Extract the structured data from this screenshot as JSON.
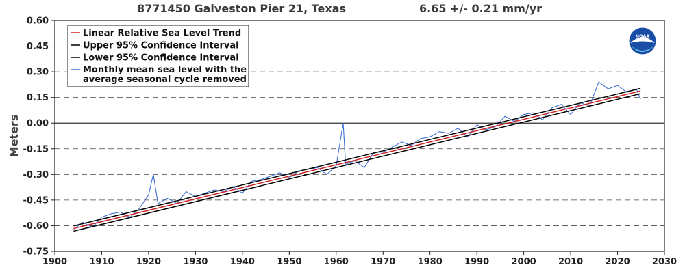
{
  "chart_data": {
    "type": "line",
    "title": "8771450 Galveston Pier 21, Texas",
    "subtitle": "6.65 +/-  0.21 mm/yr",
    "xlabel": "",
    "ylabel": "Meters",
    "xlim": [
      1900,
      2030
    ],
    "ylim": [
      -0.75,
      0.6
    ],
    "x_ticks": [
      "1900",
      "1910",
      "1920",
      "1930",
      "1940",
      "1950",
      "1960",
      "1970",
      "1980",
      "1990",
      "2000",
      "2010",
      "2020",
      "2030"
    ],
    "y_ticks": [
      "0.60",
      "0.45",
      "0.30",
      "0.15",
      "0.00",
      "-0.15",
      "-0.30",
      "-0.45",
      "-0.60",
      "-0.75"
    ],
    "grid": "horizontal dashed",
    "legend_position": "top-left",
    "colors": {
      "trend": "#cc2222",
      "ci": "#000000",
      "monthly": "#3f6fd4",
      "zero_line": "#333333"
    },
    "series": [
      {
        "name": "Linear Relative Sea Level Trend",
        "x": [
          1904.0,
          2024.9
        ],
        "y": [
          -0.616,
          0.188
        ]
      },
      {
        "name": "Upper 95% Confidence Interval",
        "x": [
          1904.0,
          2024.9
        ],
        "y": [
          -0.601,
          0.203
        ]
      },
      {
        "name": "Lower 95% Confidence Interval",
        "x": [
          1904.0,
          2024.9
        ],
        "y": [
          -0.632,
          0.172
        ]
      },
      {
        "name": "Monthly mean sea level with the average seasonal cycle removed",
        "x": [
          1904.0,
          1906.0,
          1908.0,
          1910.0,
          1912.0,
          1914.0,
          1916.0,
          1918.0,
          1920.0,
          1921.0,
          1922.0,
          1924.0,
          1926.0,
          1928.0,
          1930.0,
          1932.0,
          1934.0,
          1936.0,
          1938.0,
          1940.0,
          1942.0,
          1944.0,
          1946.0,
          1948.0,
          1950.0,
          1952.0,
          1954.0,
          1956.0,
          1958.0,
          1960.0,
          1961.5,
          1962.0,
          1964.0,
          1966.0,
          1968.0,
          1970.0,
          1972.0,
          1974.0,
          1976.0,
          1978.0,
          1980.0,
          1982.0,
          1984.0,
          1986.0,
          1988.0,
          1990.0,
          1992.0,
          1994.0,
          1996.0,
          1998.0,
          2000.0,
          2002.0,
          2004.0,
          2006.0,
          2008.0,
          2010.0,
          2012.0,
          2014.0,
          2016.0,
          2018.0,
          2020.0,
          2022.0,
          2024.0,
          2024.9
        ],
        "y": [
          -0.62,
          -0.58,
          -0.61,
          -0.55,
          -0.53,
          -0.52,
          -0.55,
          -0.5,
          -0.42,
          -0.3,
          -0.47,
          -0.44,
          -0.47,
          -0.4,
          -0.43,
          -0.41,
          -0.39,
          -0.4,
          -0.37,
          -0.41,
          -0.34,
          -0.33,
          -0.31,
          -0.29,
          -0.32,
          -0.28,
          -0.27,
          -0.26,
          -0.3,
          -0.25,
          0.0,
          -0.24,
          -0.22,
          -0.26,
          -0.17,
          -0.17,
          -0.14,
          -0.11,
          -0.13,
          -0.09,
          -0.08,
          -0.05,
          -0.06,
          -0.03,
          -0.08,
          -0.01,
          -0.04,
          -0.02,
          0.04,
          0.01,
          0.05,
          0.06,
          0.02,
          0.09,
          0.11,
          0.05,
          0.12,
          0.1,
          0.24,
          0.2,
          0.22,
          0.18,
          0.2,
          0.14
        ]
      }
    ]
  },
  "logo": {
    "text": "NOAA"
  }
}
